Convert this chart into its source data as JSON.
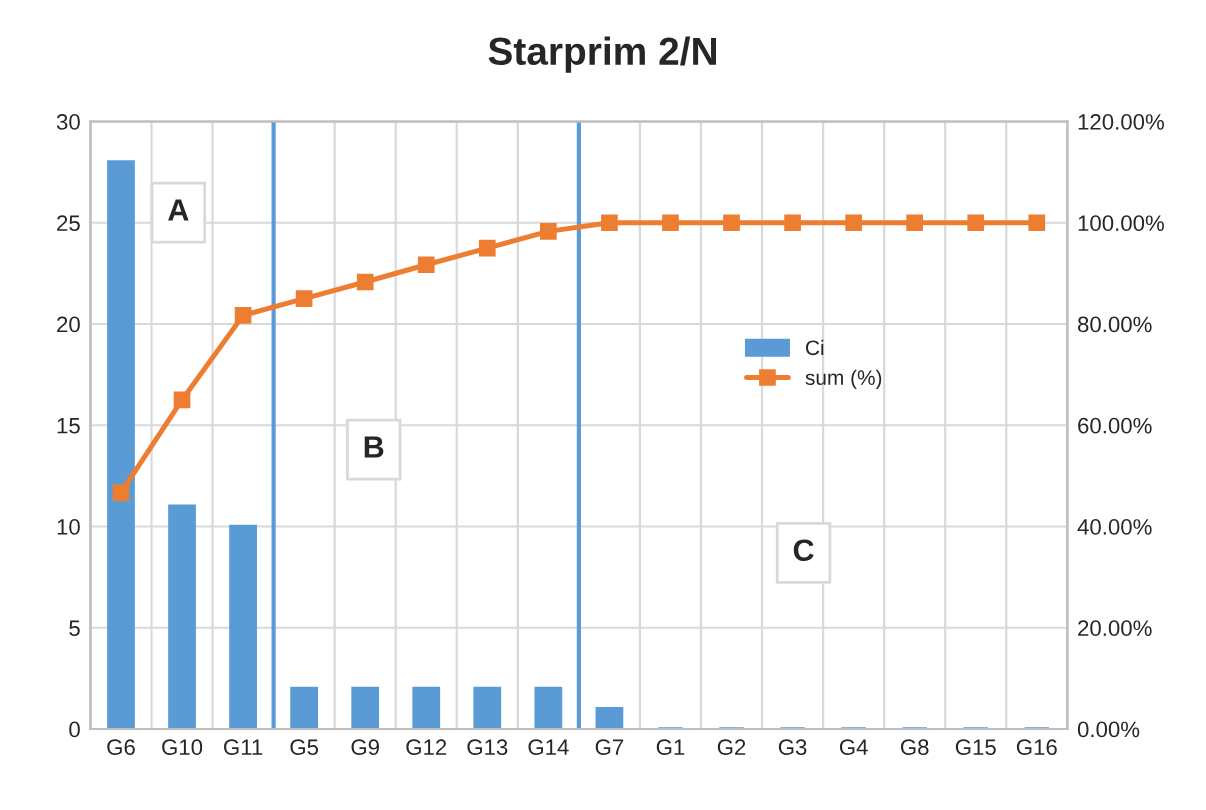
{
  "chart_data": {
    "type": "bar",
    "title": "Starprim 2/N",
    "categories": [
      "G6",
      "G10",
      "G11",
      "G5",
      "G9",
      "G12",
      "G13",
      "G14",
      "G7",
      "G1",
      "G2",
      "G3",
      "G4",
      "G8",
      "G15",
      "G16"
    ],
    "series": [
      {
        "name": "Ci",
        "color": "#5b9bd5",
        "values": [
          28,
          11,
          10,
          2,
          2,
          2,
          2,
          2,
          1,
          0,
          0,
          0,
          0,
          0,
          0,
          0
        ]
      },
      {
        "name": "sum (%)",
        "type": "line",
        "axis": "y2",
        "color": "#ed7d31",
        "marker": "square",
        "values": [
          46.7,
          65,
          81.7,
          85,
          88.3,
          91.7,
          95,
          98.3,
          100,
          100,
          100,
          100,
          100,
          100,
          100,
          100
        ]
      }
    ],
    "ylim": [
      0,
      30
    ],
    "yticks": [
      0,
      5,
      10,
      15,
      20,
      25,
      30
    ],
    "y2lim": [
      0,
      120
    ],
    "y2ticks": [
      {
        "value": 0,
        "label": "0.00%"
      },
      {
        "value": 20,
        "label": "20.00%"
      },
      {
        "value": 40,
        "label": "40.00%"
      },
      {
        "value": 60,
        "label": "60.00%"
      },
      {
        "value": 80,
        "label": "80.00%"
      },
      {
        "value": 100,
        "label": "100.00%"
      },
      {
        "value": 120,
        "label": "120.00%"
      }
    ],
    "annotations": [
      "A",
      "B",
      "C"
    ],
    "grid": true,
    "legend": "right"
  }
}
